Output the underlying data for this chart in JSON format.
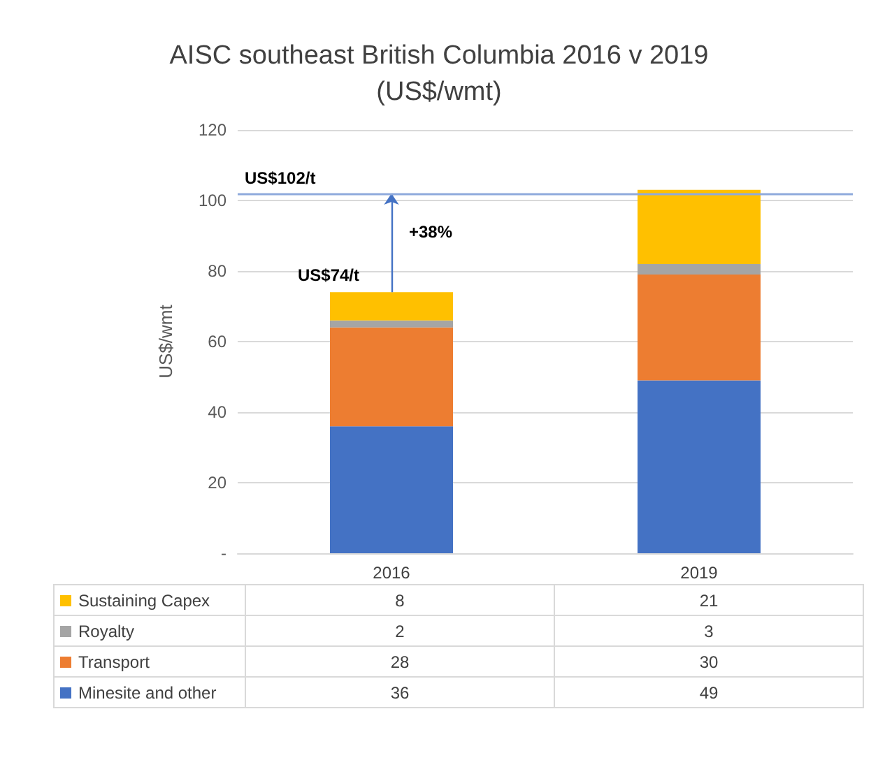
{
  "chart_data": {
    "type": "bar",
    "stacked": true,
    "title": "AISC southeast British Columbia 2016 v 2019\n(US$/wmt)",
    "ylabel": "US$/wmt",
    "categories": [
      "2016",
      "2019"
    ],
    "series": [
      {
        "name": "Minesite and other",
        "color": "#4472c4",
        "values": [
          36,
          49
        ]
      },
      {
        "name": "Transport",
        "color": "#ed7d31",
        "values": [
          28,
          30
        ]
      },
      {
        "name": "Royalty",
        "color": "#a5a5a5",
        "values": [
          2,
          3
        ]
      },
      {
        "name": "Sustaining Capex",
        "color": "#ffc000",
        "values": [
          8,
          21
        ]
      }
    ],
    "ylim": [
      0,
      120
    ],
    "yticks": [
      {
        "value": 0,
        "label": "-"
      },
      20,
      40,
      60,
      80,
      100,
      120
    ],
    "grid": "y",
    "legend": "bottom",
    "data_labels": true,
    "ref_lines": [
      {
        "axis": "y",
        "value": 102,
        "label": "US$102/t",
        "color": "#8faadc"
      }
    ],
    "annotations": [
      {
        "text": "US$74/t",
        "x": "2016",
        "y": 74
      },
      "+38%"
    ]
  }
}
